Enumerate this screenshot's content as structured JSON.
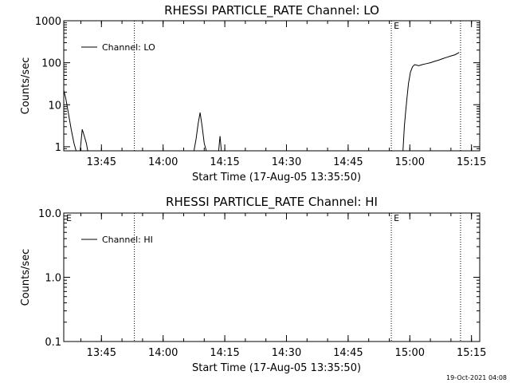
{
  "timestamp": "19-Oct-2021 04:08",
  "chart_data": [
    {
      "type": "line",
      "title": "RHESSI PARTICLE_RATE Channel: LO",
      "xlabel": "Start Time (17-Aug-05 13:35:50)",
      "ylabel": "Counts/sec",
      "yscale": "log",
      "xlim": [
        "13:35:50",
        "15:17:00"
      ],
      "ylim": [
        0.8,
        1000
      ],
      "x_ticks": [
        "13:45",
        "14:00",
        "14:15",
        "14:30",
        "14:45",
        "15:00",
        "15:15"
      ],
      "y_ticks": [
        "1",
        "10",
        "100",
        "1000"
      ],
      "legend": "top-left",
      "grid": false,
      "vertical_markers": [
        "13:53:00",
        "14:55:30",
        "15:12:20"
      ],
      "marker_labels": [
        {
          "text": "E",
          "at": "14:55:30"
        }
      ],
      "series": [
        {
          "name": "Channel: LO",
          "color": "#000000",
          "segments": [
            {
              "x": [
                "13:35:50",
                "13:36:20",
                "13:37:00",
                "13:37:40",
                "13:38:20",
                "13:38:50"
              ],
              "y": [
                22,
                14,
                6,
                2.5,
                1.2,
                0.8
              ]
            },
            {
              "x": [
                "13:39:50",
                "13:40:20",
                "13:40:50",
                "13:41:20",
                "13:41:40"
              ],
              "y": [
                0.8,
                2.6,
                1.8,
                1.2,
                0.8
              ]
            },
            {
              "x": [
                "14:07:30",
                "14:08:00",
                "14:08:30",
                "14:09:00",
                "14:09:30",
                "14:10:00",
                "14:10:30"
              ],
              "y": [
                0.8,
                1.5,
                3.5,
                6.5,
                3.0,
                1.2,
                0.8
              ]
            },
            {
              "x": [
                "14:13:30",
                "14:13:50",
                "14:14:10"
              ],
              "y": [
                0.8,
                1.8,
                0.8
              ]
            },
            {
              "x": [
                "14:58:20",
                "14:58:40",
                "14:59:00",
                "14:59:20",
                "14:59:40",
                "15:00:10",
                "15:00:40",
                "15:01:10",
                "15:01:40",
                "15:02:10",
                "15:03:00",
                "15:04:00",
                "15:05:00",
                "15:06:00",
                "15:07:00",
                "15:08:00",
                "15:09:00",
                "15:10:00",
                "15:11:00",
                "15:12:00"
              ],
              "y": [
                0.8,
                3,
                7,
                15,
                32,
                60,
                80,
                90,
                88,
                85,
                90,
                95,
                100,
                108,
                115,
                125,
                135,
                145,
                155,
                175
              ]
            }
          ]
        }
      ]
    },
    {
      "type": "line",
      "title": "RHESSI PARTICLE_RATE Channel: HI",
      "xlabel": "Start Time (17-Aug-05 13:35:50)",
      "ylabel": "Counts/sec",
      "yscale": "log",
      "xlim": [
        "13:35:50",
        "15:17:00"
      ],
      "ylim": [
        0.1,
        10
      ],
      "x_ticks": [
        "13:45",
        "14:00",
        "14:15",
        "14:30",
        "14:45",
        "15:00",
        "15:15"
      ],
      "y_ticks": [
        "0.1",
        "1.0",
        "10.0"
      ],
      "legend": "top-left",
      "grid": false,
      "vertical_markers": [
        "13:53:00",
        "14:55:30",
        "15:12:20"
      ],
      "marker_labels": [
        {
          "text": "E",
          "at": "13:35:50"
        },
        {
          "text": "E",
          "at": "14:55:30"
        }
      ],
      "series": [
        {
          "name": "Channel: HI",
          "color": "#000000",
          "segments": []
        }
      ]
    }
  ]
}
